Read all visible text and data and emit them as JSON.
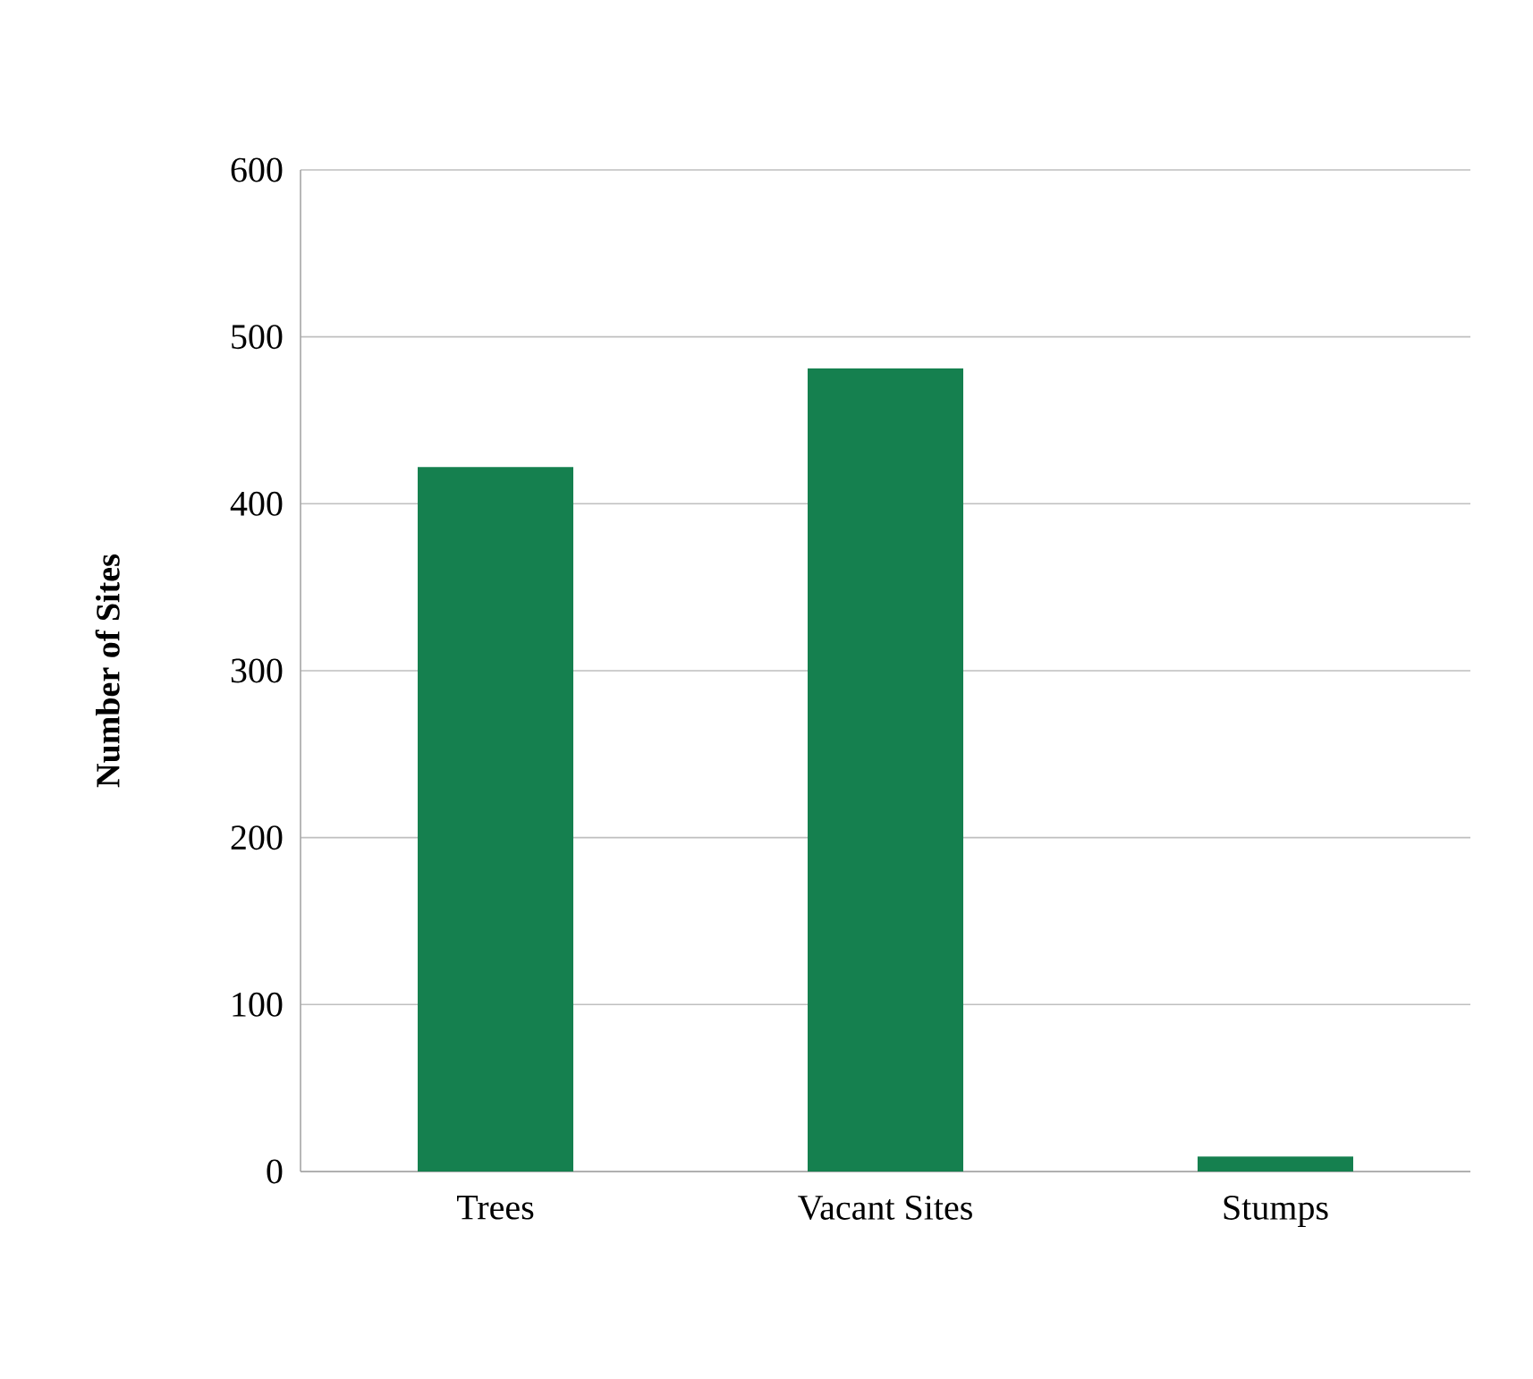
{
  "chart_data": {
    "type": "bar",
    "ylabel": "Number of Sites",
    "categories": [
      "Trees",
      "Vacant Sites",
      "Stumps"
    ],
    "values": [
      422,
      481,
      9
    ],
    "color": "#15804f",
    "ylim": [
      0,
      600
    ],
    "yticks": [
      0,
      100,
      200,
      300,
      400,
      500,
      600
    ],
    "grid": "y"
  }
}
